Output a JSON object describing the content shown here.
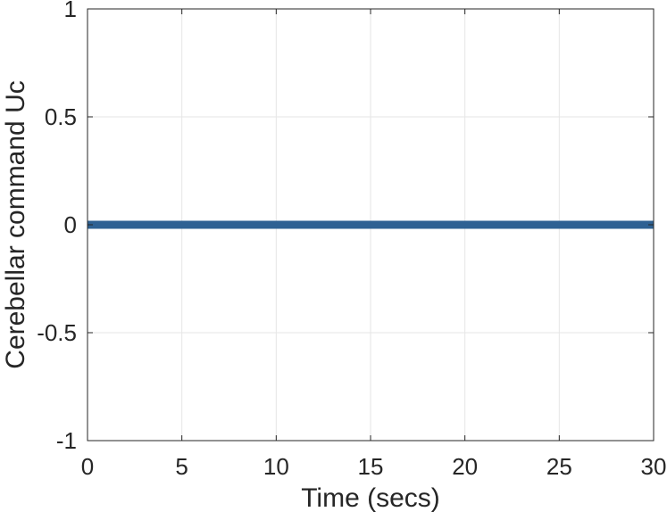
{
  "chart_data": {
    "type": "line",
    "title": "",
    "xlabel": "Time (secs)",
    "ylabel": "Cerebellar command Uc",
    "xlim": [
      0,
      30
    ],
    "ylim": [
      -1,
      1
    ],
    "xticks": [
      0,
      5,
      10,
      15,
      20,
      25,
      30
    ],
    "yticks": [
      -1,
      -0.5,
      0,
      0.5,
      1
    ],
    "xtick_labels": [
      "0",
      "5",
      "10",
      "15",
      "20",
      "25",
      "30"
    ],
    "ytick_labels": [
      "-1",
      "-0.5",
      "0",
      "0.5",
      "1"
    ],
    "grid": true,
    "series": [
      {
        "color": "#2e6193",
        "x": [
          0,
          30
        ],
        "y": [
          0,
          0
        ]
      }
    ]
  }
}
